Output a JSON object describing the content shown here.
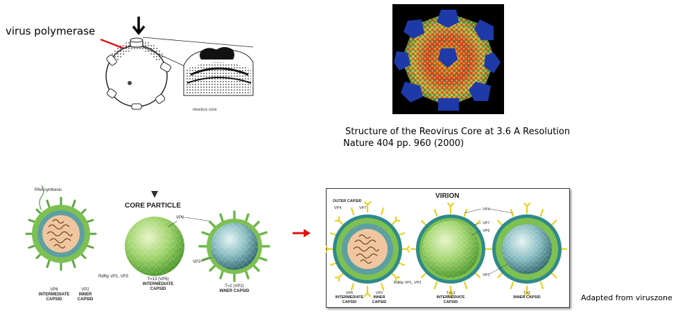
{
  "top_left": {
    "polymerase_label": "virus polymerase",
    "core_caption": "reovirus core"
  },
  "top_right": {
    "caption_line1": "Structure of the Reovirus Core at 3.6 A Resolution",
    "caption_line2": "Nature 404 pp. 960 (2000)"
  },
  "bottom_left": {
    "rna_synthesis": "RNA synthesis",
    "core_particle": "CORE PARTICLE",
    "vp6_top": "VP6",
    "vp2_side": "VP2",
    "rdrp": "RdRp VP1, VP3",
    "vp6_intermediate": "VP6",
    "intermediate_capsid": "INTERMEDIATE CAPSID",
    "vp2_inner": "VP2",
    "inner_capsid": "INNER CAPSID",
    "t13": "T=13 (VP6)",
    "t13_sub": "INTERMEDIATE CAPSID",
    "t2": "T=2 (VP2)",
    "t2_sub": "INNER CAPSID"
  },
  "bottom_right": {
    "virion": "VIRION",
    "outer_capsid": "OUTER CAPSID",
    "vp4_left": "VP4",
    "vp7_left": "VP7",
    "vp4_right": "VP4",
    "vp7_right": "VP7",
    "vp6_right": "VP6",
    "vp2_right": "VP2",
    "vp6_bottom": "VP6",
    "intermediate_capsid": "INTERMEDIATE CAPSID",
    "vp2_bottom": "VP2",
    "inner_capsid": "INNER CAPSID",
    "rdrp": "RdRp VP1, VP3",
    "t13": "T=13",
    "t13_sub": "INTERMEDIATE CAPSID",
    "t2": "T=2",
    "t2_sub": "INNER CAPSID"
  },
  "credit": "Adapted from viruszone"
}
